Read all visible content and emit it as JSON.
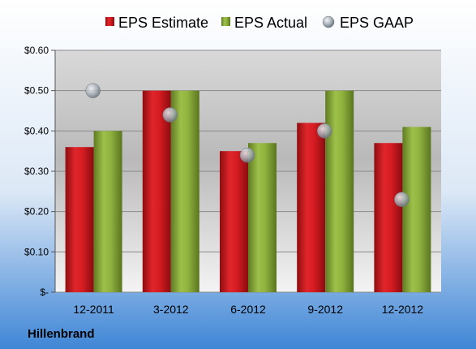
{
  "company": "Hillenbrand",
  "chart_data": {
    "type": "bar",
    "categories": [
      "12-2011",
      "3-2012",
      "6-2012",
      "9-2012",
      "12-2012"
    ],
    "series": [
      {
        "name": "EPS Estimate",
        "type": "bar",
        "color": "#c0161c",
        "values": [
          0.36,
          0.5,
          0.35,
          0.42,
          0.37
        ]
      },
      {
        "name": "EPS Actual",
        "type": "bar",
        "color": "#86a83a",
        "values": [
          0.4,
          0.5,
          0.37,
          0.5,
          0.41
        ]
      },
      {
        "name": "EPS GAAP",
        "type": "scatter",
        "color": "#9aa3ab",
        "values": [
          0.5,
          0.44,
          0.34,
          0.4,
          0.23
        ]
      }
    ],
    "ylim": [
      0,
      0.6
    ],
    "yticks": [
      0,
      0.1,
      0.2,
      0.3,
      0.4,
      0.5,
      0.6
    ],
    "ytick_labels": [
      "$-",
      "$0.10",
      "$0.20",
      "$0.30",
      "$0.40",
      "$0.50",
      "$0.60"
    ],
    "grid": true,
    "legend_position": "top"
  }
}
